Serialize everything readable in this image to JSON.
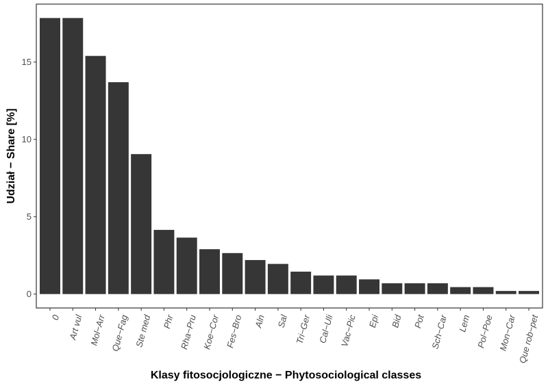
{
  "chart_data": {
    "type": "bar",
    "categories": [
      "0",
      "Art vul",
      "Mol−Arr",
      "Que−Fag",
      "Ste med",
      "Phr",
      "Rha−Pru",
      "Koe−Cor",
      "Fes−Bro",
      "Aln",
      "Sal",
      "Tri−Ger",
      "Cal−Uli",
      "Vac−Pic",
      "Epi",
      "Bid",
      "Pot",
      "Sch−Car",
      "Lem",
      "Pol−Poe",
      "Mon−Car",
      "Que rob−pet"
    ],
    "values": [
      17.85,
      17.85,
      15.4,
      13.7,
      9.05,
      4.15,
      3.65,
      2.9,
      2.65,
      2.2,
      1.95,
      1.45,
      1.2,
      1.2,
      0.95,
      0.7,
      0.7,
      0.7,
      0.45,
      0.45,
      0.2,
      0.2
    ],
    "xlabel": "Klasy fitosocjologiczne − Phytosociological classes",
    "ylabel": "Udział − Share [%]",
    "ylim": [
      -0.9,
      18.75
    ],
    "yticks": [
      0,
      5,
      10,
      15
    ],
    "grid": false,
    "colors": {
      "bar": "#363636",
      "frame": "#333333",
      "tick_text": "#4d4d4d"
    }
  }
}
